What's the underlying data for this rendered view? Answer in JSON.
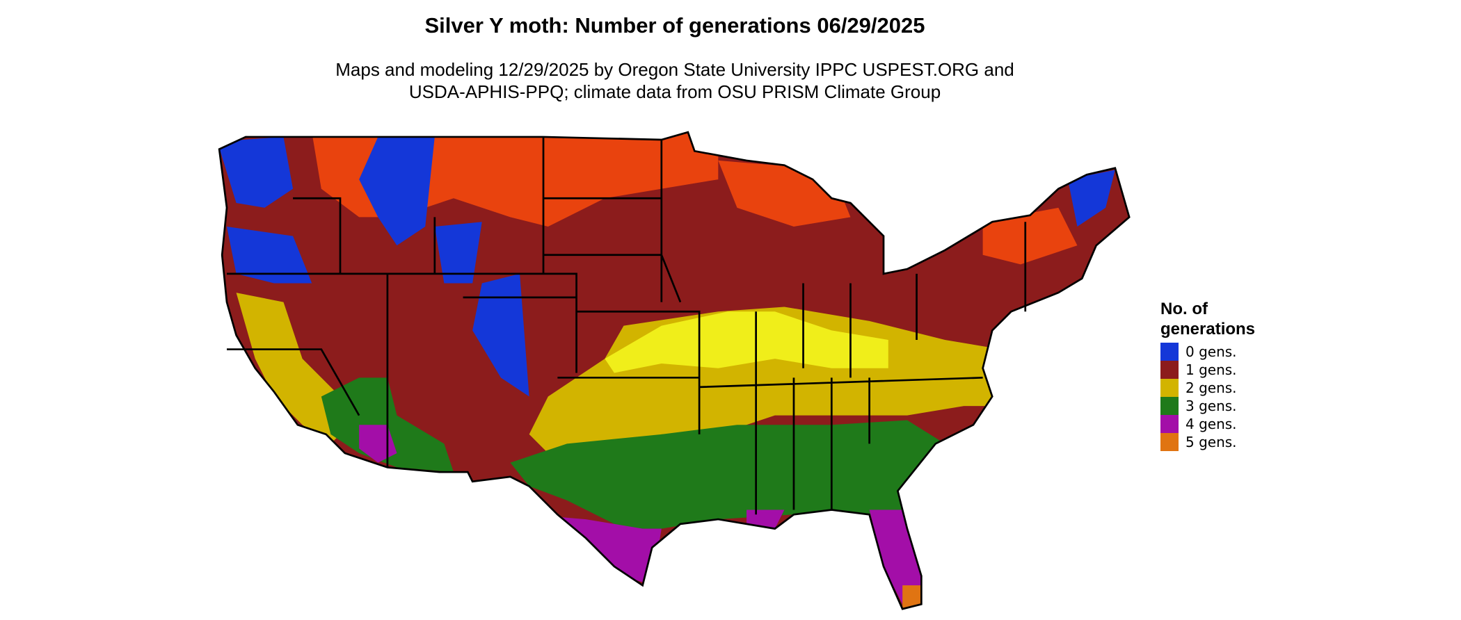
{
  "title": "Silver Y moth: Number of generations 06/29/2025",
  "subtitle": [
    "Maps and modeling 12/29/2025 by Oregon State University IPPC USPEST.ORG and",
    "USDA-APHIS-PPQ; climate data from OSU PRISM Climate Group"
  ],
  "legend": {
    "title": [
      "No. of",
      "generations"
    ],
    "items": [
      {
        "name": "0 gens.",
        "color": "#1437d8"
      },
      {
        "name": "1 gens.",
        "color": "#8c1c1c"
      },
      {
        "name": "2 gens.",
        "color": "#d2b400"
      },
      {
        "name": "3 gens.",
        "color": "#1f7a1a"
      },
      {
        "name": "4 gens.",
        "color": "#a30ea8"
      },
      {
        "name": "5 gens.",
        "color": "#e07412"
      }
    ]
  }
}
